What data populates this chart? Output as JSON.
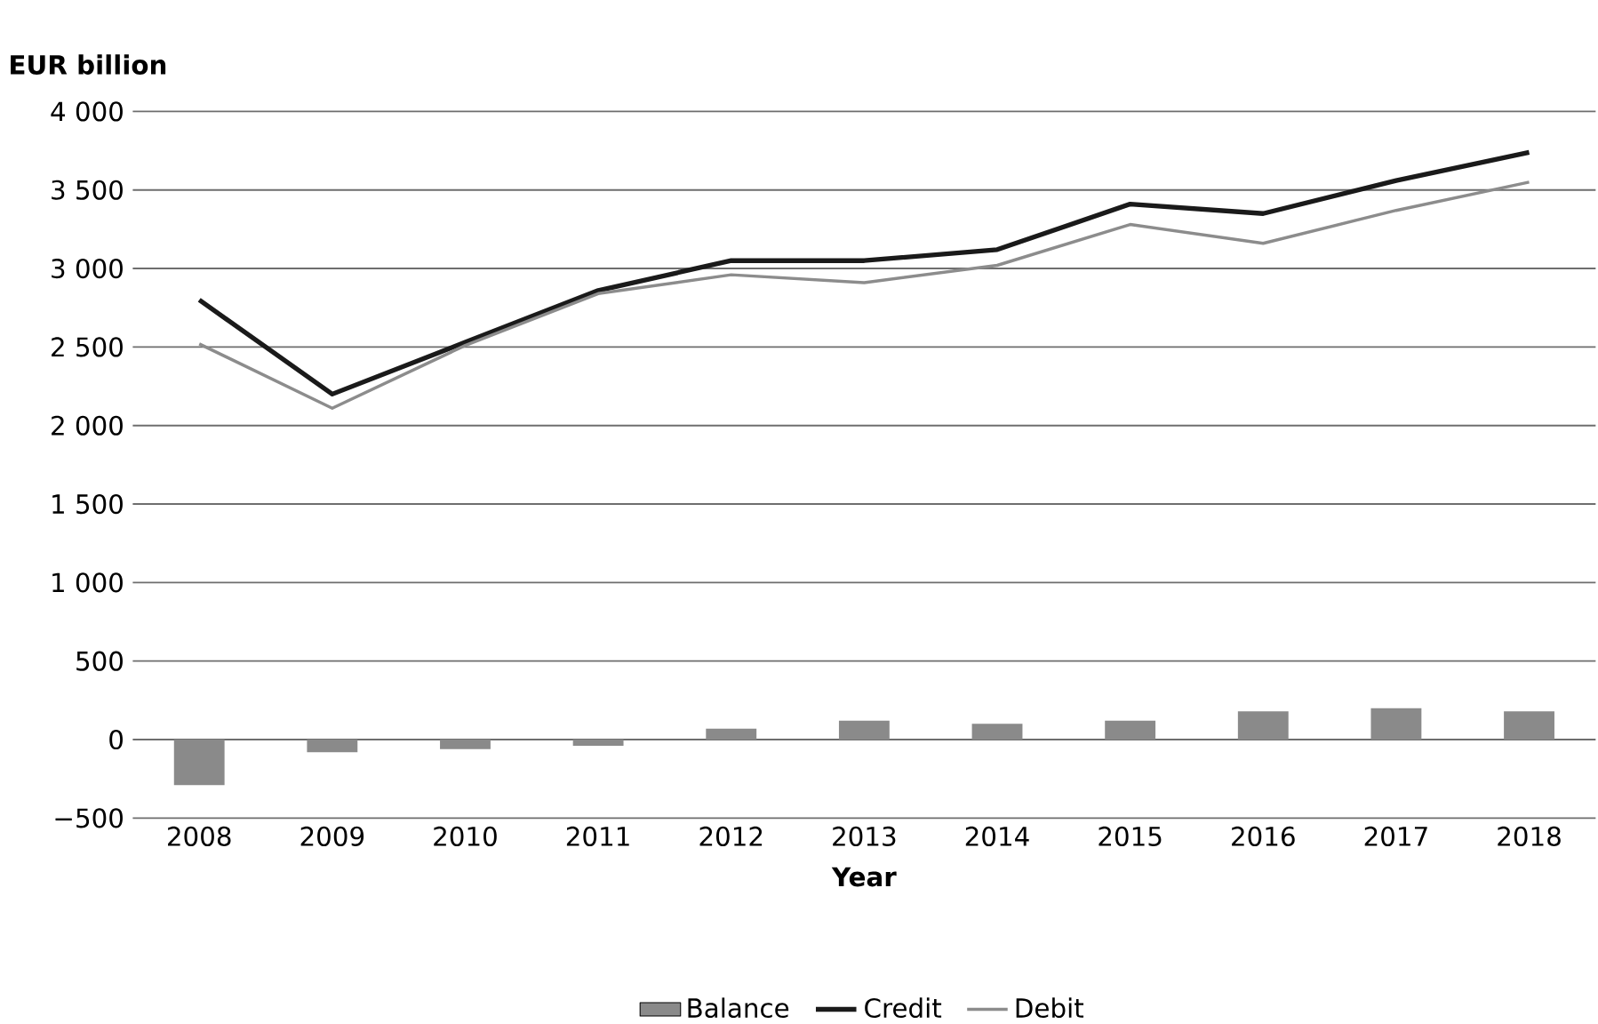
{
  "chart_data": {
    "type": "bar",
    "ylabel": "EUR billion",
    "xlabel": "Year",
    "categories": [
      "2008",
      "2009",
      "2010",
      "2011",
      "2012",
      "2013",
      "2014",
      "2015",
      "2016",
      "2017",
      "2018"
    ],
    "series": [
      {
        "name": "Balance",
        "color": "#8a8a8a",
        "values": [
          -290,
          -80,
          -60,
          -40,
          70,
          120,
          100,
          120,
          180,
          200,
          180
        ]
      },
      {
        "name": "Credit",
        "type": "line",
        "color": "#1a1a1a",
        "values": [
          2800,
          2200,
          2530,
          2860,
          3050,
          3050,
          3120,
          3410,
          3350,
          3560,
          3740
        ]
      },
      {
        "name": "Debit",
        "type": "line",
        "color": "#8c8c8c",
        "values": [
          2520,
          2110,
          2510,
          2840,
          2960,
          2910,
          3020,
          3280,
          3160,
          3370,
          3550
        ]
      }
    ],
    "ylim": [
      -500,
      4000
    ],
    "yticks": [
      {
        "value": -500,
        "label": "−500"
      },
      0,
      {
        "value": 500,
        "label": "500"
      },
      {
        "value": 1000,
        "label": "1 000"
      },
      {
        "value": 1500,
        "label": "1 500"
      },
      {
        "value": 2000,
        "label": "2 000"
      },
      {
        "value": 2500,
        "label": "2 500"
      },
      {
        "value": 3000,
        "label": "3 000"
      },
      {
        "value": 3500,
        "label": "3 500"
      },
      {
        "value": 4000,
        "label": "4 000"
      }
    ],
    "grid": "y",
    "legend": "bottom",
    "marker": "none",
    "line_style": "solid"
  }
}
